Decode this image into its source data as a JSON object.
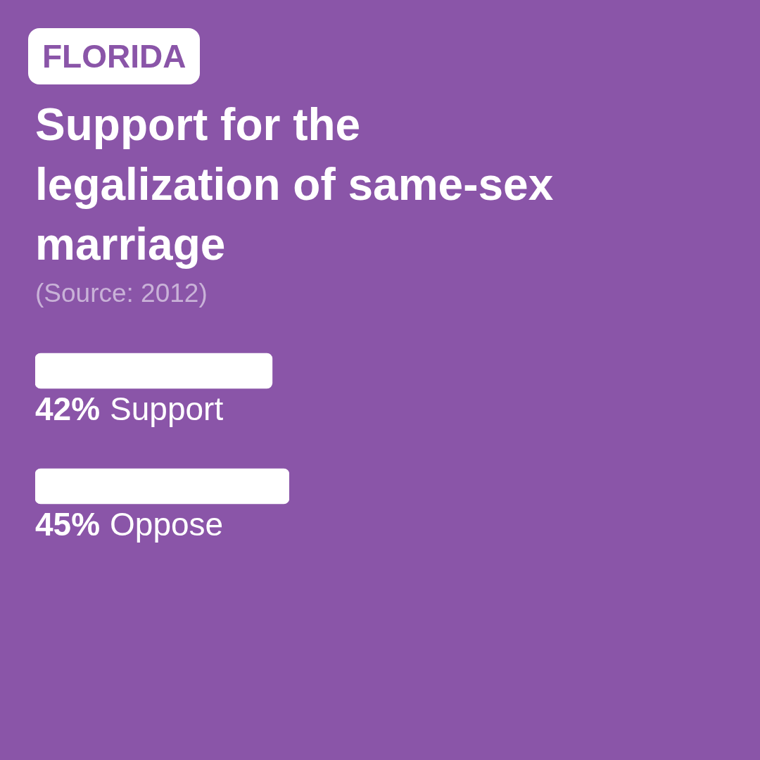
{
  "chart_data": {
    "type": "bar",
    "orientation": "horizontal",
    "subtitle": "FLORIDA",
    "title": "Support for the legalization of same-sex marriage",
    "annotations": [
      "(Source: 2012)"
    ],
    "categories": [
      "Support",
      "Oppose"
    ],
    "values": [
      42,
      45
    ],
    "value_labels": [
      "42%",
      "45%"
    ],
    "color": "#ffffff"
  }
}
